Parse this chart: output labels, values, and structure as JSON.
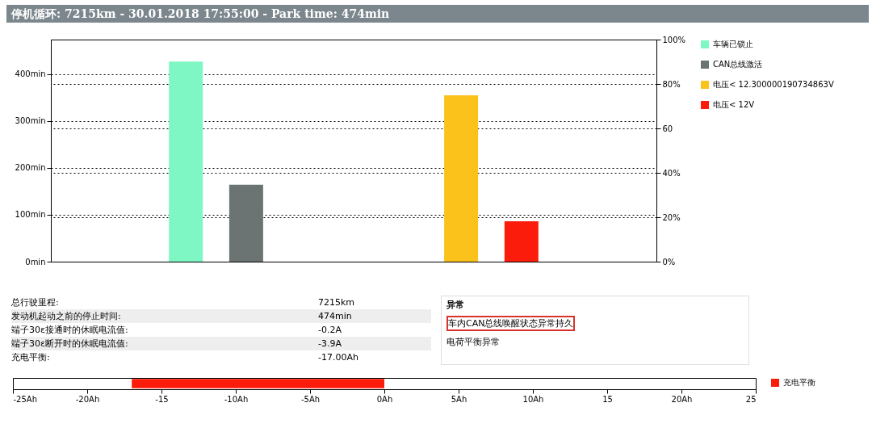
{
  "chart_data": [
    {
      "type": "bar",
      "title": "停机循环: 7215km - 30.01.2018 17:55:00 - Park time: 474min",
      "categories": [
        null,
        null
      ],
      "series": [
        {
          "name": "车辆已锁止",
          "color": "#7ef7c4",
          "values": [
            427,
            null
          ]
        },
        {
          "name": "CAN总线激活",
          "color": "#6b7472",
          "values": [
            164,
            null
          ]
        },
        {
          "name": "电压< 12.300000190734863V",
          "color": "#fcc21c",
          "values": [
            null,
            355
          ]
        },
        {
          "name": "电压< 12V",
          "color": "#fb1c0c",
          "values": [
            null,
            86
          ]
        }
      ],
      "ylim": [
        0,
        474
      ],
      "yticks": [
        {
          "value": 0,
          "label": "0min"
        },
        {
          "value": 100,
          "label": "100min"
        },
        {
          "value": 200,
          "label": "200min"
        },
        {
          "value": 300,
          "label": "300min"
        },
        {
          "value": 400,
          "label": "400min"
        }
      ],
      "y2lim": [
        0,
        100
      ],
      "y2ticks": [
        {
          "value": 0,
          "label": "0%"
        },
        {
          "value": 20,
          "label": "20%"
        },
        {
          "value": 40,
          "label": "40%"
        },
        60,
        {
          "value": 80,
          "label": "80%"
        },
        {
          "value": 100,
          "label": "100%"
        }
      ],
      "grid": true,
      "legend": "right",
      "annotations": [
        "总行驶里程:",
        "7215km",
        "发动机起动之前的停止时间:",
        "474min",
        "端子30ɛ接通时的休眠电流值:",
        "-0.2A",
        "端子30ɛ断开时的休眠电流值:",
        "-3.9A",
        "充电平衡:",
        "-17.00Ah",
        "异常",
        "车内CAN总线唤醒状态异常持久",
        "电荷平衡异常"
      ]
    },
    {
      "type": "bar",
      "orientation": "horizontal",
      "categories": [
        null
      ],
      "series": [
        {
          "name": "充电平衡",
          "color": "#fb1c0c",
          "values": [
            -17
          ]
        }
      ],
      "xlim": [
        -25,
        25
      ],
      "xticks": [
        {
          "value": -25,
          "label": "-25Ah"
        },
        {
          "value": -20,
          "label": "-20Ah"
        },
        -15,
        {
          "value": -10,
          "label": "-10Ah"
        },
        {
          "value": -5,
          "label": "-5Ah"
        },
        {
          "value": 0,
          "label": "0Ah"
        },
        {
          "value": 5,
          "label": "5Ah"
        },
        {
          "value": 10,
          "label": "10Ah"
        },
        15,
        {
          "value": 20,
          "label": "20Ah"
        },
        25
      ],
      "grid": false,
      "legend": "right"
    }
  ]
}
